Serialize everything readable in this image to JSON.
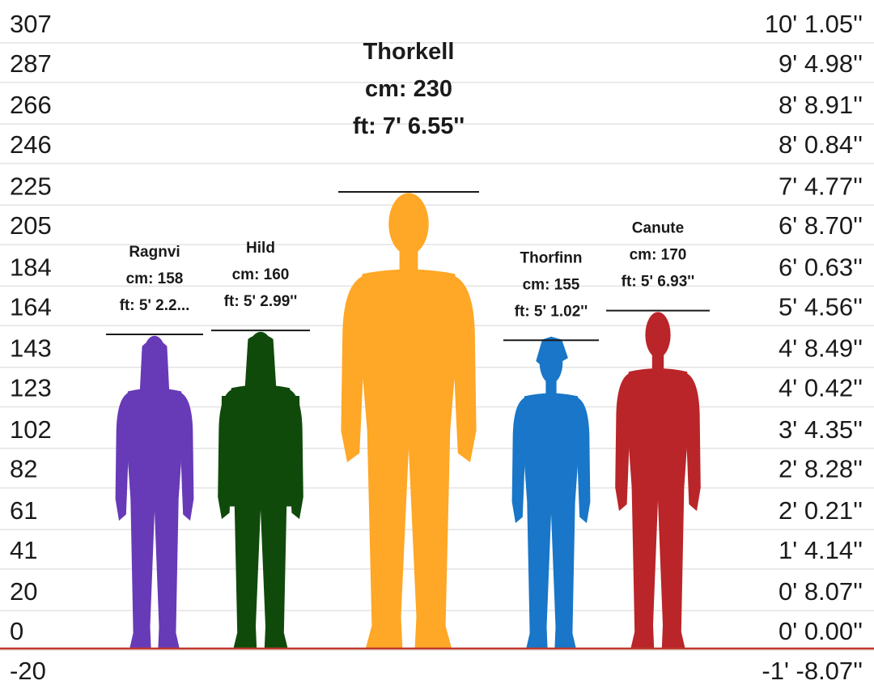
{
  "chart_data": {
    "type": "height-comparison",
    "ylim": [
      -20,
      307
    ],
    "grid": true,
    "baseline_value": 0,
    "baseline_color": "#c0392b",
    "left_ticks": [
      "307",
      "287",
      "266",
      "246",
      "225",
      "205",
      "184",
      "164",
      "143",
      "123",
      "102",
      "82",
      "61",
      "41",
      "20",
      "0",
      "-20"
    ],
    "right_ticks": [
      "10' 1.05''",
      "9' 4.98''",
      "8' 8.91''",
      "8' 0.84''",
      "7' 4.77''",
      "6' 8.70''",
      "6' 0.63''",
      "5' 4.56''",
      "4' 8.49''",
      "4' 0.42''",
      "3' 4.35''",
      "2' 8.28''",
      "2' 0.21''",
      "1' 4.14''",
      "0' 8.07''",
      "0' 0.00''",
      "-1' -8.07''"
    ],
    "characters": [
      {
        "name": "Ragnvi",
        "cm": 158,
        "cm_label": "cm: 158",
        "ft_label": "ft: 5' 2.2...",
        "color": "#673ab7",
        "figure": "female-long-hair-icon"
      },
      {
        "name": "Hild",
        "cm": 160,
        "cm_label": "cm: 160",
        "ft_label": "ft: 5' 2.99''",
        "color": "#0f4a0a",
        "figure": "female-long-coat-icon"
      },
      {
        "name": "Thorkell",
        "cm": 230,
        "cm_label": "cm: 230",
        "ft_label": "ft: 7' 6.55''",
        "color": "#ffa726",
        "figure": "male-large-icon"
      },
      {
        "name": "Thorfinn",
        "cm": 155,
        "cm_label": "cm: 155",
        "ft_label": "ft: 5' 1.02''",
        "color": "#1976c8",
        "figure": "male-messy-hair-icon"
      },
      {
        "name": "Canute",
        "cm": 170,
        "cm_label": "cm: 170",
        "ft_label": "ft: 5' 6.93''",
        "color": "#b92528",
        "figure": "male-hands-pockets-icon"
      }
    ]
  }
}
